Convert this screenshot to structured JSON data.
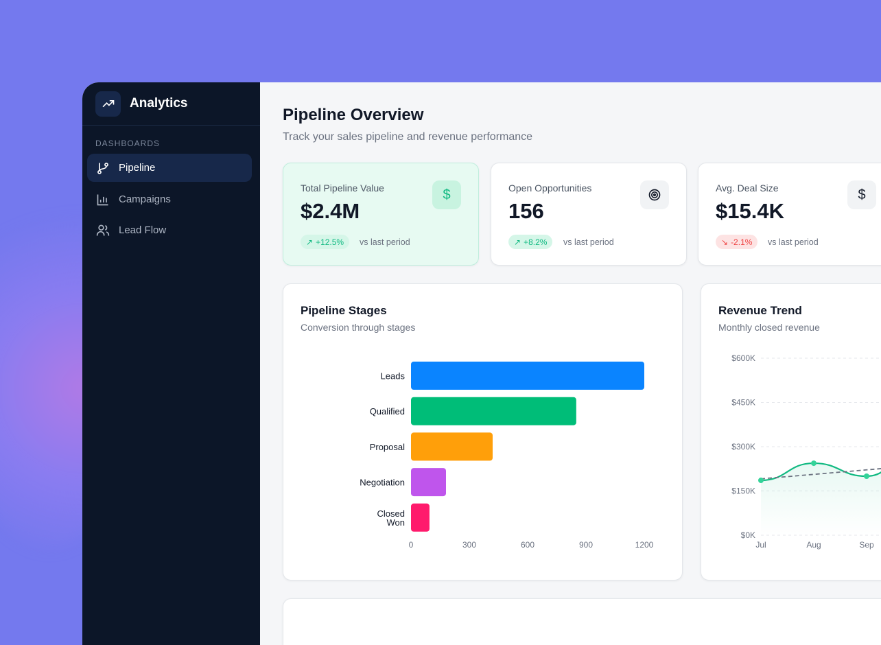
{
  "sidebar": {
    "title": "Analytics",
    "section": "DASHBOARDS",
    "items": [
      {
        "label": "Pipeline",
        "icon": "git-branch-icon",
        "active": true
      },
      {
        "label": "Campaigns",
        "icon": "bar-chart-icon"
      },
      {
        "label": "Lead Flow",
        "icon": "users-icon"
      }
    ]
  },
  "header": {
    "title": "Pipeline Overview",
    "subtitle": "Track your sales pipeline and revenue performance"
  },
  "kpis": [
    {
      "label": "Total Pipeline Value",
      "value": "$2.4M",
      "icon": "dollar-icon",
      "change": "+12.5%",
      "trend": "up",
      "note": "vs last period"
    },
    {
      "label": "Open Opportunities",
      "value": "156",
      "icon": "target-icon",
      "change": "+8.2%",
      "trend": "up",
      "note": "vs last period"
    },
    {
      "label": "Avg. Deal Size",
      "value": "$15.4K",
      "icon": "dollar-icon",
      "change": "-2.1%",
      "trend": "down",
      "note": "vs last period"
    }
  ],
  "colors": {
    "accent": "#10b981",
    "negative": "#ef4444",
    "background": "#7479ee",
    "sidebar": "#0c1628"
  },
  "chart_data": [
    {
      "type": "bar",
      "orientation": "horizontal",
      "title": "Pipeline Stages",
      "subtitle": "Conversion through stages",
      "categories": [
        "Leads",
        "Qualified",
        "Proposal",
        "Negotiation",
        "Closed Won"
      ],
      "values": [
        1200,
        850,
        420,
        180,
        95
      ],
      "colors": [
        "#0a84ff",
        "#00bd78",
        "#ff9f0a",
        "#bf55ec",
        "#ff1a6c"
      ],
      "xlim": [
        0,
        1200
      ],
      "xticks": [
        "0",
        "300",
        "600",
        "900",
        "1200"
      ]
    },
    {
      "type": "line",
      "title": "Revenue Trend",
      "subtitle": "Monthly closed revenue",
      "categories": [
        "Jul",
        "Aug",
        "Sep"
      ],
      "series": [
        {
          "values": [
            186000,
            244000,
            200000
          ],
          "color": "#10b981"
        }
      ],
      "trend": {
        "start": 191000,
        "end_at_edge": 246000,
        "style": "dashed"
      },
      "ylim": [
        0,
        600000
      ],
      "yticks": [
        "$0K",
        "$150K",
        "$300K",
        "$450K",
        "$600K"
      ],
      "grid": true
    }
  ]
}
